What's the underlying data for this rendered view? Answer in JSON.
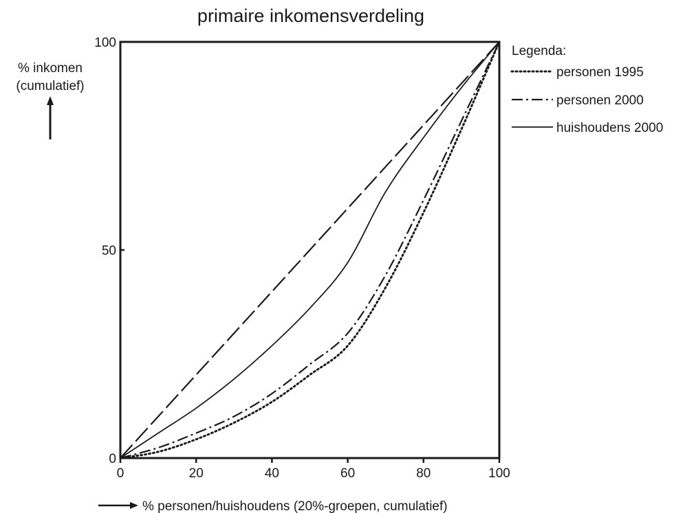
{
  "chart_data": {
    "type": "line",
    "title": "primaire inkomensverdeling",
    "ylabel_line1": "% inkomen",
    "ylabel_line2": "(cumulatief)",
    "xlabel": "% personen/huishoudens (20%-groepen, cumulatief)",
    "xlim": [
      0,
      100
    ],
    "ylim": [
      0,
      100
    ],
    "x_ticks": [
      "0",
      "20",
      "40",
      "60",
      "80",
      "100"
    ],
    "y_ticks": [
      "0",
      "50",
      "100"
    ],
    "grid": false,
    "legend": {
      "title": "Legenda:",
      "placement": "right"
    },
    "reference_line": {
      "x": [
        0,
        100
      ],
      "y": [
        0,
        100
      ],
      "style": "long-dash"
    },
    "series": [
      {
        "name": "personen 1995",
        "style": "dotted",
        "x": [
          0,
          10,
          20,
          30,
          40,
          50,
          60,
          70,
          80,
          90,
          100
        ],
        "y": [
          0,
          1.5,
          4.5,
          8.5,
          13.5,
          20,
          27,
          41,
          59,
          79,
          100
        ]
      },
      {
        "name": "personen 2000",
        "style": "dash-dot",
        "x": [
          0,
          10,
          20,
          30,
          40,
          50,
          60,
          70,
          80,
          90,
          100
        ],
        "y": [
          0,
          2.5,
          6,
          10,
          15.5,
          22.5,
          30,
          44,
          62,
          81,
          100
        ]
      },
      {
        "name": "huishoudens 2000",
        "style": "solid",
        "x": [
          0,
          10,
          20,
          30,
          40,
          50,
          60,
          70,
          80,
          90,
          100
        ],
        "y": [
          0,
          6,
          12,
          19,
          27,
          36,
          47,
          64,
          77,
          89,
          100
        ]
      }
    ]
  }
}
